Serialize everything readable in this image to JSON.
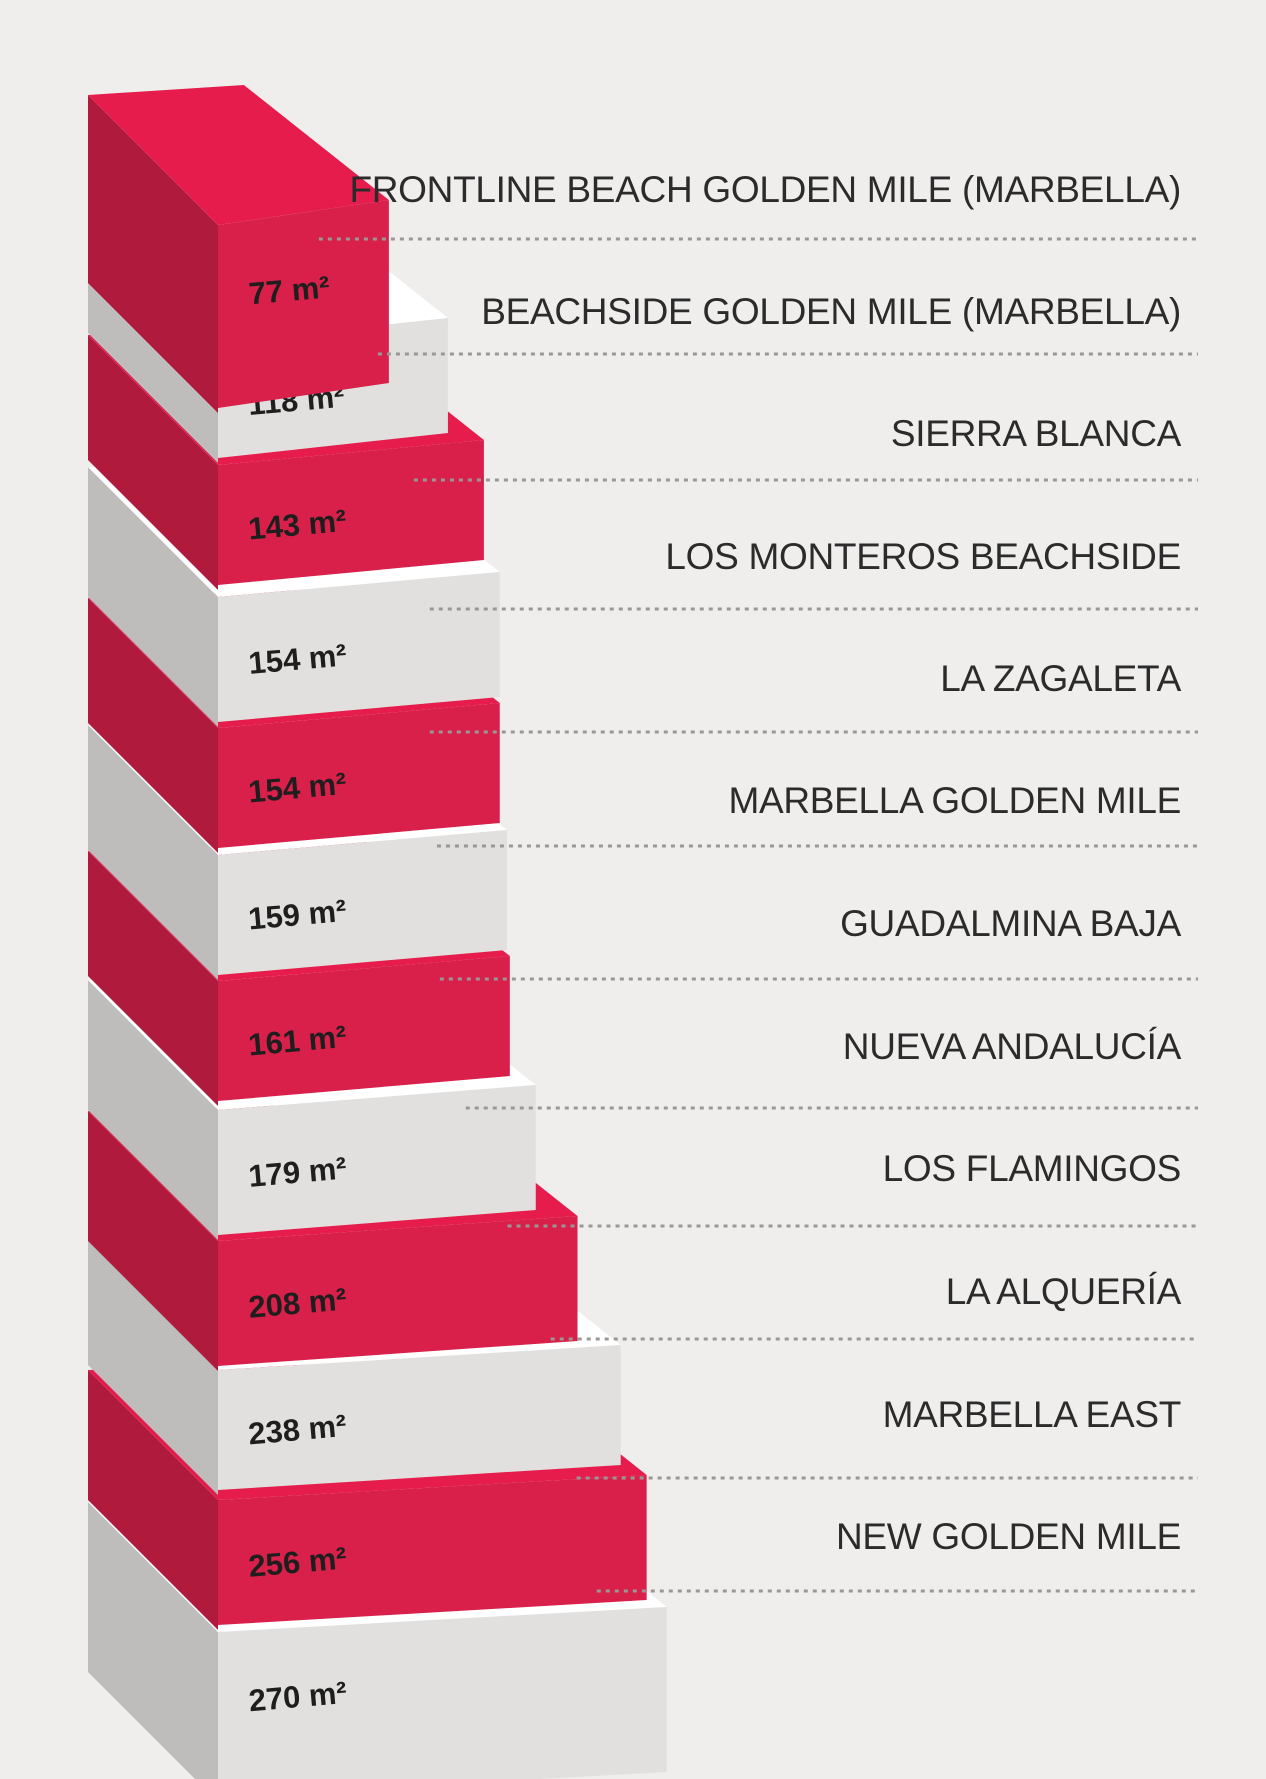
{
  "chart_data": {
    "type": "bar",
    "unit": "m²",
    "categories": [
      "FRONTLINE BEACH GOLDEN MILE (MARBELLA)",
      "BEACHSIDE GOLDEN MILE (MARBELLA)",
      "SIERRA BLANCA",
      "LOS MONTEROS BEACHSIDE",
      "LA ZAGALETA",
      "MARBELLA GOLDEN MILE",
      "GUADALMINA BAJA",
      "NUEVA ANDALUCÍA",
      "LOS FLAMINGOS",
      "LA ALQUERÍA",
      "MARBELLA EAST",
      "NEW GOLDEN MILE"
    ],
    "values": [
      77,
      118,
      143,
      154,
      154,
      159,
      161,
      179,
      208,
      238,
      256,
      270
    ],
    "value_labels": [
      "77 m²",
      "118 m²",
      "143 m²",
      "154 m²",
      "154 m²",
      "159 m²",
      "161 m²",
      "179 m²",
      "208 m²",
      "238 m²",
      "256 m²",
      "270 m²"
    ],
    "title": "",
    "colors": {
      "red_front": "#d8204a",
      "red_top": "#e51c4c",
      "red_side": "#b01a3c",
      "grey_front": "#e2e0de",
      "grey_top": "#ffffff",
      "grey_side": "#bfbdbc",
      "background": "#efeeec",
      "leader": "#9a9896"
    }
  }
}
